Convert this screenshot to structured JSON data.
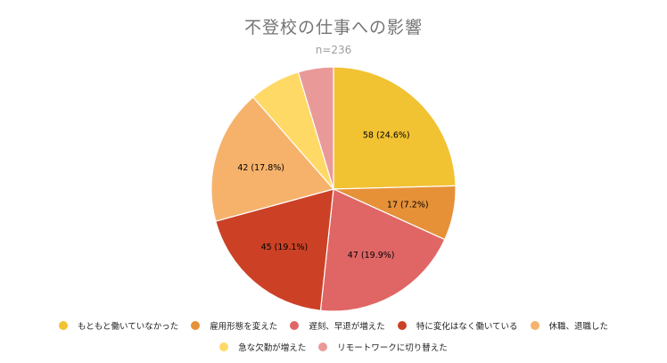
{
  "chart_data": {
    "type": "pie",
    "title": "不登校の仕事への影響",
    "subtitle": "n=236",
    "slices": [
      {
        "label": "もともと働いていなかった",
        "value": 58,
        "display": "58 (24.6%)",
        "color": "#F1C232"
      },
      {
        "label": "雇用形態を変えた",
        "value": 17,
        "display": "17 (7.2%)",
        "color": "#E69138"
      },
      {
        "label": "遅刻、早退が増えた",
        "value": 47,
        "display": "47 (19.9%)",
        "color": "#E06666"
      },
      {
        "label": "特に変化はなく働いている",
        "value": 45,
        "display": "45 (19.1%)",
        "color": "#CC4125"
      },
      {
        "label": "休職、退職した",
        "value": 42,
        "display": "42 (17.8%)",
        "color": "#F6B26B"
      },
      {
        "label": "急な欠勤が増えた",
        "value": 16,
        "display": "",
        "color": "#FFD966"
      },
      {
        "label": "リモートワークに切り替えた",
        "value": 11,
        "display": "",
        "color": "#EA9999"
      }
    ],
    "legend_position": "bottom"
  }
}
